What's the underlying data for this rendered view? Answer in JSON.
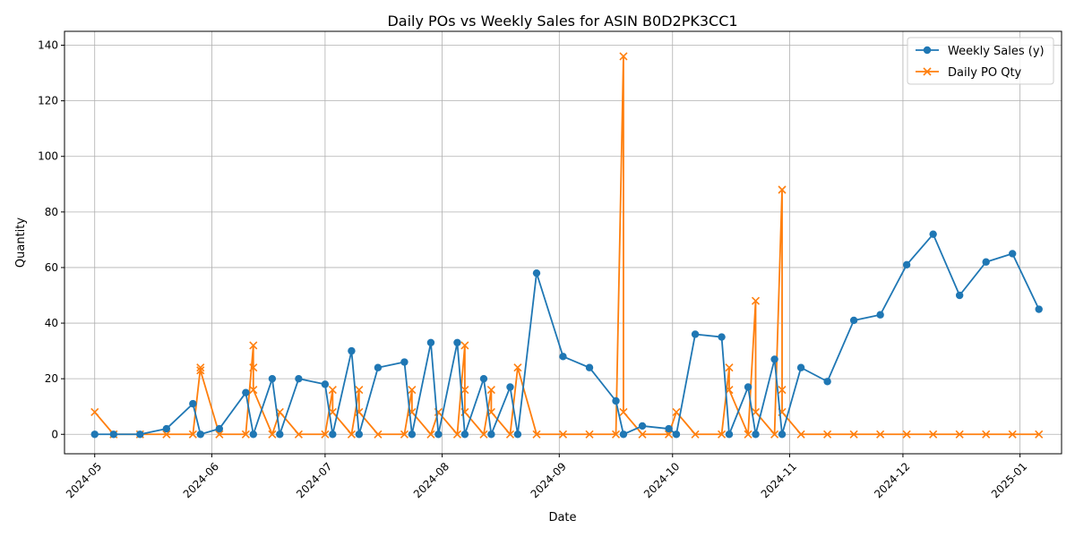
{
  "chart_data": {
    "type": "line",
    "title": "Daily POs vs Weekly Sales for ASIN B0D2PK3CC1",
    "xlabel": "Date",
    "ylabel": "Quantity",
    "xlim": [
      "2024-04-23",
      "2025-01-12"
    ],
    "ylim": [
      -7,
      145
    ],
    "grid": true,
    "legend_position": "top-right",
    "x_tick_labels": [
      "2024-05",
      "2024-06",
      "2024-07",
      "2024-08",
      "2024-09",
      "2024-10",
      "2024-11",
      "2024-12",
      "2025-01"
    ],
    "x_tick_dates": [
      "2024-05-01",
      "2024-06-01",
      "2024-07-01",
      "2024-08-01",
      "2024-09-01",
      "2024-10-01",
      "2024-11-01",
      "2024-12-01",
      "2025-01-01"
    ],
    "y_ticks": [
      0,
      20,
      40,
      60,
      80,
      100,
      120,
      140
    ],
    "series": [
      {
        "name": "Weekly Sales (y)",
        "color": "#1f77b4",
        "marker": "circle",
        "points": [
          [
            "2024-05-01",
            0
          ],
          [
            "2024-05-06",
            0
          ],
          [
            "2024-05-13",
            0
          ],
          [
            "2024-05-20",
            2
          ],
          [
            "2024-05-27",
            11
          ],
          [
            "2024-05-29",
            0
          ],
          [
            "2024-06-03",
            2
          ],
          [
            "2024-06-10",
            15
          ],
          [
            "2024-06-12",
            0
          ],
          [
            "2024-06-17",
            20
          ],
          [
            "2024-06-19",
            0
          ],
          [
            "2024-06-24",
            20
          ],
          [
            "2024-07-01",
            18
          ],
          [
            "2024-07-03",
            0
          ],
          [
            "2024-07-08",
            30
          ],
          [
            "2024-07-10",
            0
          ],
          [
            "2024-07-15",
            24
          ],
          [
            "2024-07-22",
            26
          ],
          [
            "2024-07-24",
            0
          ],
          [
            "2024-07-29",
            33
          ],
          [
            "2024-07-31",
            0
          ],
          [
            "2024-08-05",
            33
          ],
          [
            "2024-08-07",
            0
          ],
          [
            "2024-08-12",
            20
          ],
          [
            "2024-08-14",
            0
          ],
          [
            "2024-08-19",
            17
          ],
          [
            "2024-08-21",
            0
          ],
          [
            "2024-08-26",
            58
          ],
          [
            "2024-09-02",
            28
          ],
          [
            "2024-09-09",
            24
          ],
          [
            "2024-09-16",
            12
          ],
          [
            "2024-09-18",
            0
          ],
          [
            "2024-09-23",
            3
          ],
          [
            "2024-09-30",
            2
          ],
          [
            "2024-10-02",
            0
          ],
          [
            "2024-10-07",
            36
          ],
          [
            "2024-10-14",
            35
          ],
          [
            "2024-10-16",
            0
          ],
          [
            "2024-10-21",
            17
          ],
          [
            "2024-10-23",
            0
          ],
          [
            "2024-10-28",
            27
          ],
          [
            "2024-10-30",
            0
          ],
          [
            "2024-11-04",
            24
          ],
          [
            "2024-11-11",
            19
          ],
          [
            "2024-11-18",
            41
          ],
          [
            "2024-11-25",
            43
          ],
          [
            "2024-12-02",
            61
          ],
          [
            "2024-12-09",
            72
          ],
          [
            "2024-12-16",
            50
          ],
          [
            "2024-12-23",
            62
          ],
          [
            "2024-12-30",
            65
          ],
          [
            "2025-01-06",
            45
          ]
        ]
      },
      {
        "name": "Daily PO Qty",
        "color": "#ff7f0e",
        "marker": "x",
        "points": [
          [
            "2024-05-01",
            8
          ],
          [
            "2024-05-06",
            0
          ],
          [
            "2024-05-13",
            0
          ],
          [
            "2024-05-20",
            0
          ],
          [
            "2024-05-27",
            0
          ],
          [
            "2024-05-29",
            24
          ],
          [
            "2024-05-29",
            23
          ],
          [
            "2024-06-03",
            0
          ],
          [
            "2024-06-10",
            0
          ],
          [
            "2024-06-12",
            32
          ],
          [
            "2024-06-12",
            24
          ],
          [
            "2024-06-12",
            16
          ],
          [
            "2024-06-17",
            0
          ],
          [
            "2024-06-19",
            8
          ],
          [
            "2024-06-24",
            0
          ],
          [
            "2024-07-01",
            0
          ],
          [
            "2024-07-03",
            16
          ],
          [
            "2024-07-03",
            8
          ],
          [
            "2024-07-08",
            0
          ],
          [
            "2024-07-10",
            16
          ],
          [
            "2024-07-10",
            8
          ],
          [
            "2024-07-15",
            0
          ],
          [
            "2024-07-22",
            0
          ],
          [
            "2024-07-24",
            16
          ],
          [
            "2024-07-24",
            8
          ],
          [
            "2024-07-29",
            0
          ],
          [
            "2024-07-31",
            8
          ],
          [
            "2024-08-05",
            0
          ],
          [
            "2024-08-07",
            32
          ],
          [
            "2024-08-07",
            16
          ],
          [
            "2024-08-07",
            8
          ],
          [
            "2024-08-12",
            0
          ],
          [
            "2024-08-14",
            16
          ],
          [
            "2024-08-14",
            8
          ],
          [
            "2024-08-19",
            0
          ],
          [
            "2024-08-21",
            24
          ],
          [
            "2024-08-26",
            0
          ],
          [
            "2024-09-02",
            0
          ],
          [
            "2024-09-09",
            0
          ],
          [
            "2024-09-16",
            0
          ],
          [
            "2024-09-18",
            136
          ],
          [
            "2024-09-18",
            8
          ],
          [
            "2024-09-23",
            0
          ],
          [
            "2024-09-30",
            0
          ],
          [
            "2024-10-02",
            8
          ],
          [
            "2024-10-07",
            0
          ],
          [
            "2024-10-14",
            0
          ],
          [
            "2024-10-16",
            24
          ],
          [
            "2024-10-16",
            16
          ],
          [
            "2024-10-21",
            0
          ],
          [
            "2024-10-23",
            48
          ],
          [
            "2024-10-23",
            8
          ],
          [
            "2024-10-28",
            0
          ],
          [
            "2024-10-30",
            88
          ],
          [
            "2024-10-30",
            16
          ],
          [
            "2024-10-30",
            8
          ],
          [
            "2024-11-04",
            0
          ],
          [
            "2024-11-11",
            0
          ],
          [
            "2024-11-18",
            0
          ],
          [
            "2024-11-25",
            0
          ],
          [
            "2024-12-02",
            0
          ],
          [
            "2024-12-09",
            0
          ],
          [
            "2024-12-16",
            0
          ],
          [
            "2024-12-23",
            0
          ],
          [
            "2024-12-30",
            0
          ],
          [
            "2025-01-06",
            0
          ]
        ]
      }
    ]
  }
}
